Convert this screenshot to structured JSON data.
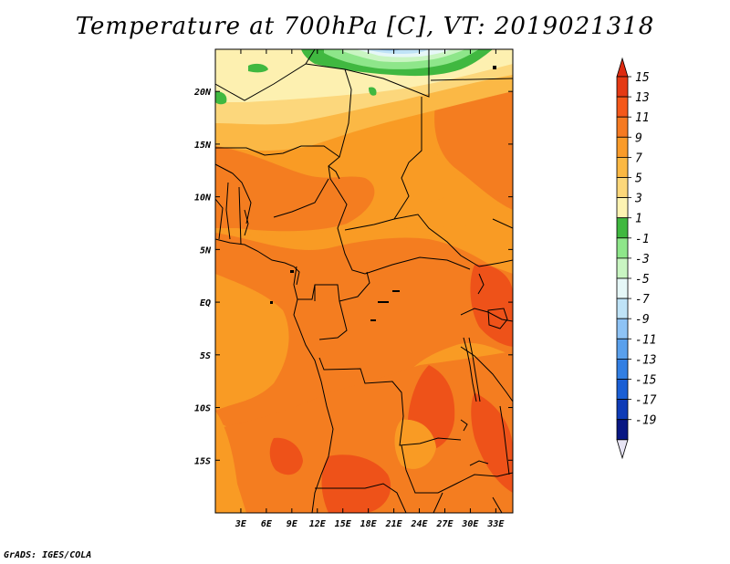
{
  "title": "Temperature at 700hPa [C], VT: 2019021318",
  "credit": "GrADS: IGES/COLA",
  "chart_data": {
    "type": "heatmap",
    "title": "Temperature at 700hPa [C], VT: 2019021318",
    "variable": "Temperature at 700hPa",
    "units": "C",
    "valid_time": "2019021318",
    "lon_range": [
      0,
      35
    ],
    "lat_range": [
      -20,
      24
    ],
    "x_ticks": [
      {
        "value": 3,
        "label": "3E"
      },
      {
        "value": 6,
        "label": "6E"
      },
      {
        "value": 9,
        "label": "9E"
      },
      {
        "value": 12,
        "label": "12E"
      },
      {
        "value": 15,
        "label": "15E"
      },
      {
        "value": 18,
        "label": "18E"
      },
      {
        "value": 21,
        "label": "21E"
      },
      {
        "value": 24,
        "label": "24E"
      },
      {
        "value": 27,
        "label": "27E"
      },
      {
        "value": 30,
        "label": "30E"
      },
      {
        "value": 33,
        "label": "33E"
      }
    ],
    "y_ticks": [
      {
        "value": 20,
        "label": "20N"
      },
      {
        "value": 15,
        "label": "15N"
      },
      {
        "value": 10,
        "label": "10N"
      },
      {
        "value": 5,
        "label": "5N"
      },
      {
        "value": 0,
        "label": "EQ"
      },
      {
        "value": -5,
        "label": "5S"
      },
      {
        "value": -10,
        "label": "10S"
      },
      {
        "value": -15,
        "label": "15S"
      }
    ],
    "colorbar": {
      "labels": [
        "15",
        "13",
        "11",
        "9",
        "7",
        "5",
        "3",
        "1",
        "-1",
        "-3",
        "-5",
        "-7",
        "-9",
        "-11",
        "-13",
        "-15",
        "-17",
        "-19"
      ],
      "colors": [
        "#e53a14",
        "#f4581a",
        "#f57a22",
        "#f99b2a",
        "#fbb843",
        "#fcd77a",
        "#fdf3b2",
        "#40b840",
        "#8ee68a",
        "#c9f5c2",
        "#e6f7f7",
        "#bfe3f7",
        "#8ec3f5",
        "#5aa0ec",
        "#327fe3",
        "#1a5fd5",
        "#0f3cb7",
        "#081783"
      ]
    }
  },
  "colors": {
    "t_13": "#ee5219",
    "t_11": "#f47d20",
    "t_9": "#f99b24",
    "t_7": "#fbb845",
    "t_5": "#fcd77c",
    "t_3": "#fdf0b0",
    "t_1": "#40b840",
    "t_m1": "#8ee68a",
    "t_m3": "#c9f5c2",
    "t_m5": "#e6f7f7",
    "t_m7": "#bfe3f7",
    "t_m9": "#8ec3f5",
    "border": "#000000"
  }
}
